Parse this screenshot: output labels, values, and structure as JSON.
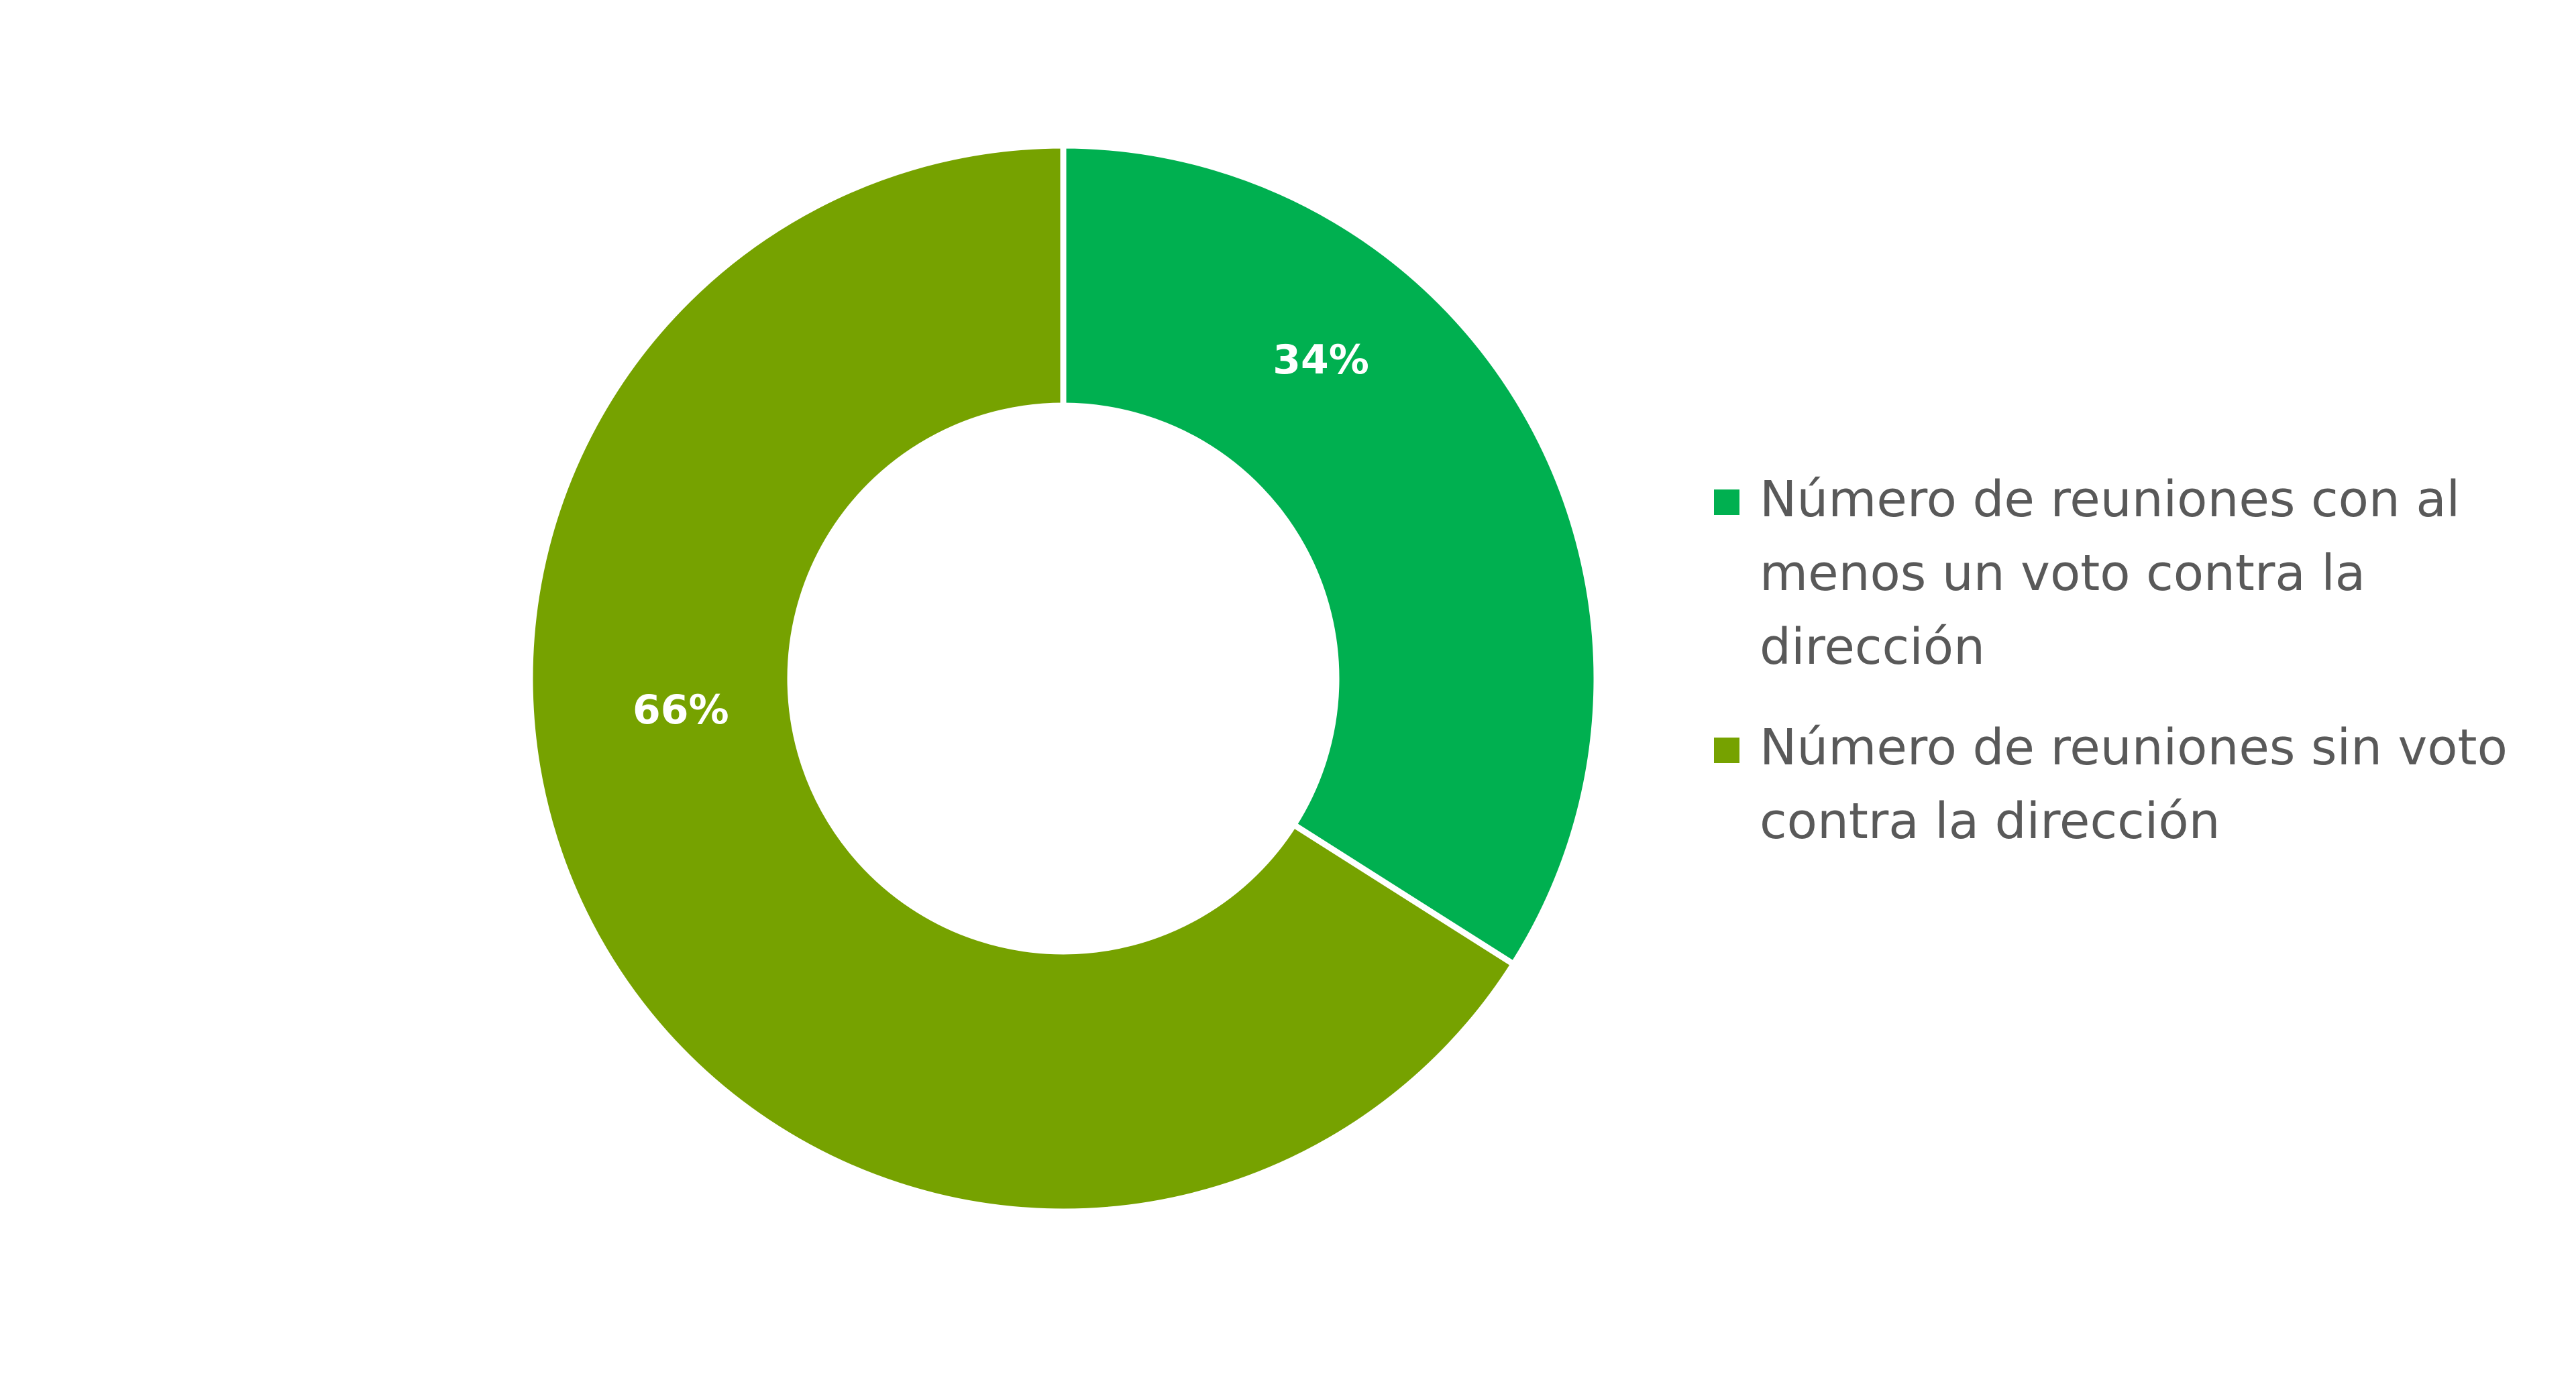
{
  "chart_data": {
    "type": "pie",
    "subtype": "donut",
    "categories": [
      "Número de reuniones con al menos un voto contra la dirección",
      "Número de reuniones sin voto contra la dirección"
    ],
    "values": [
      34,
      66
    ],
    "data_labels": [
      "34%",
      "66%"
    ],
    "colors": [
      "#00b050",
      "#76a200"
    ],
    "legend_position": "right",
    "start_angle": "top, clockwise"
  }
}
